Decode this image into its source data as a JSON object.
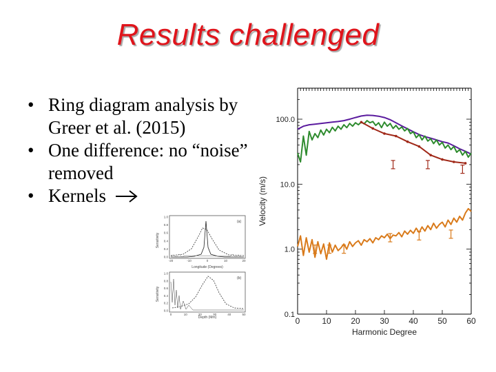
{
  "slide": {
    "title": "Results challenged",
    "bullets": [
      {
        "text": "Ring diagram analysis by Greer et al. (2015)"
      },
      {
        "text": "One difference: no “noise” removed"
      },
      {
        "text": "Kernels"
      }
    ],
    "bullet_symbol": "•",
    "arrow_icon": "arrow-right-icon"
  },
  "kernel_plots": [
    {
      "panel_label": "(a)",
      "ylabel": "Sensitivity",
      "xlabel": "Longitude (Degrees)",
      "yticks": [
        "1.0",
        "0.8",
        "0.6",
        "0.4",
        "0.2",
        "0.0"
      ],
      "xticks": [
        "-20",
        "-10",
        "0",
        "10",
        "20"
      ]
    },
    {
      "panel_label": "(b)",
      "ylabel": "Sensitivity",
      "xlabel": "Depth (Mm)",
      "yticks": [
        "1.0",
        "0.8",
        "0.6",
        "0.4",
        "0.2",
        "0.0"
      ],
      "xticks": [
        "0",
        "10",
        "20",
        "30",
        "40",
        "50"
      ]
    }
  ],
  "chart_data": {
    "type": "line",
    "xlabel": "Harmonic Degree",
    "ylabel": "Velocity (m/s)",
    "xlim": [
      0,
      60
    ],
    "ylim": [
      0.1,
      300
    ],
    "yscale": "log",
    "xticks": [
      "0",
      "10",
      "20",
      "30",
      "40",
      "50",
      "60"
    ],
    "yticks": [
      "100.0",
      "10.0",
      "1.0",
      "0.1"
    ],
    "colors": {
      "purple": "#5a1a9e",
      "green": "#2e8b2e",
      "dark_red": "#a02818",
      "orange": "#d97a1a"
    },
    "series": [
      {
        "color": "#5a1a9e",
        "x": [
          0,
          2,
          4,
          6,
          8,
          10,
          12,
          14,
          16,
          18,
          20,
          22,
          24,
          26,
          28,
          30,
          32,
          34,
          36,
          38,
          40,
          42,
          44,
          46,
          48,
          50,
          52,
          54,
          56,
          58,
          60
        ],
        "y": [
          70,
          78,
          82,
          84,
          86,
          88,
          90,
          92,
          95,
          100,
          106,
          112,
          115,
          114,
          111,
          106,
          98,
          88,
          79,
          71,
          64,
          58,
          54,
          51,
          48,
          45,
          43,
          39,
          35,
          32,
          29
        ]
      },
      {
        "color": "#2e8b2e",
        "x": [
          0,
          1,
          2,
          3,
          4,
          5,
          6,
          7,
          8,
          9,
          10,
          11,
          12,
          13,
          14,
          15,
          16,
          17,
          18,
          19,
          20,
          21,
          22,
          23,
          24,
          25,
          26,
          27,
          28,
          29,
          30,
          31,
          32,
          33,
          34,
          35,
          36,
          37,
          38,
          39,
          40,
          41,
          42,
          43,
          44,
          45,
          46,
          47,
          48,
          49,
          50,
          51,
          52,
          53,
          54,
          55,
          56,
          57,
          58,
          59,
          60
        ],
        "y": [
          30,
          22,
          55,
          28,
          65,
          48,
          60,
          52,
          68,
          57,
          70,
          62,
          75,
          66,
          78,
          70,
          82,
          74,
          86,
          78,
          88,
          82,
          90,
          85,
          95,
          88,
          92,
          80,
          88,
          74,
          90,
          78,
          86,
          72,
          80,
          70,
          76,
          66,
          72,
          60,
          64,
          52,
          58,
          48,
          55,
          46,
          50,
          42,
          48,
          40,
          44,
          36,
          40,
          34,
          38,
          31,
          34,
          28,
          32,
          26,
          30
        ]
      },
      {
        "color": "#a02818",
        "x": [
          22,
          26,
          30,
          34,
          38,
          42,
          46,
          50,
          54,
          58
        ],
        "y": [
          90,
          72,
          60,
          55,
          45,
          38,
          28,
          24,
          22,
          21
        ],
        "error_points": [
          {
            "x": 33,
            "y": 20
          },
          {
            "x": 45,
            "y": 20
          },
          {
            "x": 57,
            "y": 17
          }
        ]
      },
      {
        "color": "#d97a1a",
        "x": [
          0,
          1,
          2,
          3,
          4,
          5,
          6,
          7,
          8,
          9,
          10,
          11,
          12,
          13,
          14,
          15,
          16,
          17,
          18,
          19,
          20,
          21,
          22,
          23,
          24,
          25,
          26,
          27,
          28,
          29,
          30,
          31,
          32,
          33,
          34,
          35,
          36,
          37,
          38,
          39,
          40,
          41,
          42,
          43,
          44,
          45,
          46,
          47,
          48,
          49,
          50,
          51,
          52,
          53,
          54,
          55,
          56,
          57,
          58,
          59,
          60
        ],
        "y": [
          1.1,
          1.6,
          0.8,
          1.5,
          0.9,
          1.4,
          0.75,
          1.3,
          0.85,
          1.2,
          0.7,
          1.25,
          0.9,
          1.15,
          0.95,
          1.05,
          1.2,
          1.0,
          1.3,
          1.1,
          1.25,
          1.35,
          1.15,
          1.4,
          1.3,
          1.45,
          1.25,
          1.5,
          1.4,
          1.6,
          1.5,
          1.7,
          1.45,
          1.65,
          1.6,
          1.8,
          1.55,
          1.9,
          1.7,
          1.95,
          1.75,
          2.1,
          1.8,
          2.2,
          1.9,
          2.3,
          2.0,
          2.5,
          2.1,
          2.4,
          2.6,
          2.2,
          2.8,
          2.4,
          3.0,
          2.6,
          3.2,
          2.8,
          3.6,
          4.2,
          3.8
        ],
        "error_points": [
          {
            "x": 6,
            "y": 1.0
          },
          {
            "x": 11,
            "y": 1.0
          },
          {
            "x": 16,
            "y": 1.0
          },
          {
            "x": 32,
            "y": 1.5
          },
          {
            "x": 42,
            "y": 1.6
          },
          {
            "x": 53,
            "y": 1.7
          }
        ]
      }
    ]
  }
}
